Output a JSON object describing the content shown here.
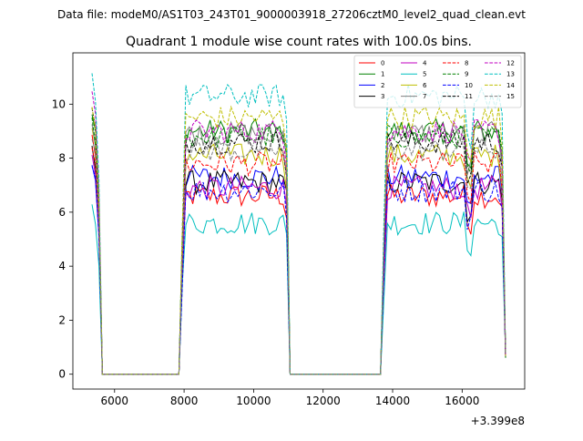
{
  "suptitle": "Data file: modeM0/AS1T03_243T01_9000003918_27206cztM0_level2_quad_clean.evt",
  "chart_data": {
    "type": "line",
    "title": "Quadrant 1 module wise count rates with 100.0s bins.",
    "xlabel": "",
    "ylabel": "",
    "offset_label": "+3.399e8",
    "xlim": [
      4800,
      17800
    ],
    "ylim": [
      -0.55,
      11.9
    ],
    "xticks": [
      6000,
      8000,
      10000,
      12000,
      14000,
      16000
    ],
    "yticks": [
      0,
      2,
      4,
      6,
      8,
      10
    ],
    "legend_position": "top-right",
    "gti_segments": [
      [
        5350,
        5550
      ],
      [
        7950,
        10950
      ],
      [
        13750,
        17150
      ]
    ],
    "series": [
      {
        "name": "0",
        "color": "#ff0000",
        "dash": "solid",
        "level": 6.6,
        "start": 8.8
      },
      {
        "name": "1",
        "color": "#008000",
        "dash": "solid",
        "level": 9.0,
        "start": 9.6
      },
      {
        "name": "2",
        "color": "#0000ff",
        "dash": "solid",
        "level": 7.3,
        "start": 7.8
      },
      {
        "name": "3",
        "color": "#000000",
        "dash": "solid",
        "level": 7.1,
        "start": 8.3
      },
      {
        "name": "4",
        "color": "#c000c0",
        "dash": "solid",
        "level": 6.9,
        "start": 8.0
      },
      {
        "name": "5",
        "color": "#00bfbf",
        "dash": "solid",
        "level": 5.6,
        "start": 6.2
      },
      {
        "name": "6",
        "color": "#bfbf00",
        "dash": "solid",
        "level": 8.1,
        "start": 9.0
      },
      {
        "name": "7",
        "color": "#808080",
        "dash": "solid",
        "level": 8.9,
        "start": 9.3
      },
      {
        "name": "8",
        "color": "#ff0000",
        "dash": "dashed",
        "level": 7.8,
        "start": 8.5
      },
      {
        "name": "9",
        "color": "#008000",
        "dash": "dashed",
        "level": 8.8,
        "start": 9.4
      },
      {
        "name": "10",
        "color": "#0000ff",
        "dash": "dashed",
        "level": 6.8,
        "start": 7.9
      },
      {
        "name": "11",
        "color": "#000000",
        "dash": "dashed",
        "level": 8.6,
        "start": 9.8
      },
      {
        "name": "12",
        "color": "#c000c0",
        "dash": "dashed",
        "level": 9.0,
        "start": 10.3
      },
      {
        "name": "13",
        "color": "#00bfbf",
        "dash": "dashed",
        "level": 10.3,
        "start": 11.1
      },
      {
        "name": "14",
        "color": "#bfbf00",
        "dash": "dashed",
        "level": 9.5,
        "start": 9.9
      },
      {
        "name": "15",
        "color": "#808080",
        "dash": "dashed",
        "level": 8.3,
        "start": 8.9
      }
    ]
  }
}
